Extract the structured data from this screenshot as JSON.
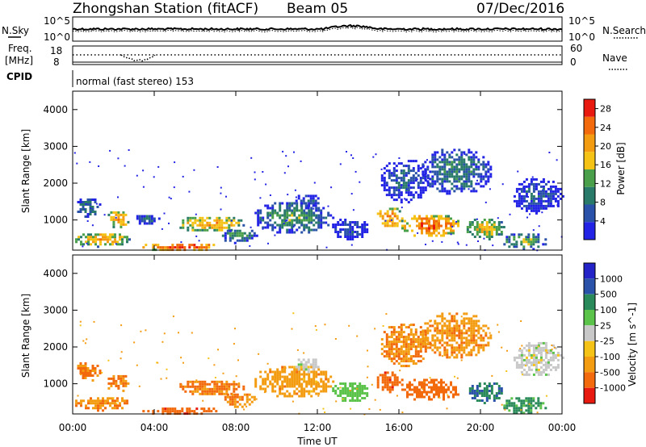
{
  "header": {
    "title": "Zhongshan Station (fitACF)",
    "beam": "Beam 05",
    "date": "07/Dec/2016"
  },
  "chart_data": [
    {
      "type": "line",
      "panel": "noise",
      "left_label": "N.Sky",
      "right_label": "N.Search",
      "left_ticks": [
        "10^5",
        "10^0"
      ],
      "right_ticks": [
        "10^5",
        "10^0"
      ]
    },
    {
      "type": "line",
      "panel": "frequency",
      "left_label_1": "Freq.",
      "left_label_2": "[MHz]",
      "right_label": "Nave",
      "left_ticks": [
        "18",
        "8"
      ],
      "right_ticks": [
        "60",
        "0"
      ]
    },
    {
      "type": "heatmap",
      "panel": "cpid",
      "left_label": "CPID",
      "mode": "normal (fast stereo) 153"
    },
    {
      "type": "heatmap",
      "panel": "power",
      "ylabel": "Slant Range [km]",
      "y_ticks": [
        "1000",
        "2000",
        "3000",
        "4000"
      ],
      "ylim": [
        180,
        4500
      ],
      "colorbar_label": "Power [dB]",
      "colorbar_ticks": [
        "4",
        "8",
        "12",
        "16",
        "20",
        "24",
        "28"
      ],
      "colorbar_range": [
        0,
        30
      ],
      "colors": [
        "#2323e6",
        "#2a52a8",
        "#2a7a6a",
        "#4aa04a",
        "#f5c216",
        "#f39c12",
        "#f26a0b",
        "#e81a0f"
      ],
      "blobs": [
        {
          "t0": 0.0,
          "t1": 2.8,
          "r0": 300,
          "r1": 700,
          "v": 20
        },
        {
          "t0": 0.1,
          "t1": 1.4,
          "r0": 1100,
          "r1": 1650,
          "v": 10
        },
        {
          "t0": 1.6,
          "t1": 2.8,
          "r0": 800,
          "r1": 1300,
          "v": 20
        },
        {
          "t0": 3.0,
          "t1": 4.2,
          "r0": 900,
          "r1": 1200,
          "v": 8
        },
        {
          "t0": 3.3,
          "t1": 7.2,
          "r0": 190,
          "r1": 420,
          "v": 27
        },
        {
          "t0": 5.0,
          "t1": 8.4,
          "r0": 700,
          "r1": 1150,
          "v": 20
        },
        {
          "t0": 7.2,
          "t1": 9.0,
          "r0": 400,
          "r1": 800,
          "v": 12
        },
        {
          "t0": 8.8,
          "t1": 12.8,
          "r0": 650,
          "r1": 1550,
          "v": 12
        },
        {
          "t0": 10.8,
          "t1": 12.1,
          "r0": 1350,
          "r1": 1750,
          "v": 8
        },
        {
          "t0": 12.6,
          "t1": 14.5,
          "r0": 500,
          "r1": 1100,
          "v": 6
        },
        {
          "t0": 14.8,
          "t1": 16.2,
          "r0": 800,
          "r1": 1400,
          "v": 22
        },
        {
          "t0": 15.0,
          "t1": 17.5,
          "r0": 1500,
          "r1": 2700,
          "v": 7
        },
        {
          "t0": 16.0,
          "t1": 19.0,
          "r0": 550,
          "r1": 1200,
          "v": 24
        },
        {
          "t0": 17.0,
          "t1": 20.5,
          "r0": 1700,
          "r1": 3000,
          "v": 10
        },
        {
          "t0": 19.2,
          "t1": 21.2,
          "r0": 500,
          "r1": 1100,
          "v": 18
        },
        {
          "t0": 21.0,
          "t1": 23.2,
          "r0": 200,
          "r1": 700,
          "v": 14
        },
        {
          "t0": 21.5,
          "t1": 24.0,
          "r0": 1200,
          "r1": 2200,
          "v": 7
        }
      ]
    },
    {
      "type": "heatmap",
      "panel": "velocity",
      "xlabel": "Time UT",
      "x_ticks": [
        "00:00",
        "04:00",
        "08:00",
        "12:00",
        "16:00",
        "20:00",
        "00:00"
      ],
      "xlim": [
        0,
        24
      ],
      "ylabel": "Slant Range [km]",
      "y_ticks": [
        "1000",
        "2000",
        "3000",
        "4000"
      ],
      "ylim": [
        180,
        4500
      ],
      "colorbar_label": "Velocity [m s^-1]",
      "colorbar_ticks": [
        "1000",
        "500",
        "100",
        "25",
        "-25",
        "-100",
        "-500",
        "-1000"
      ],
      "colorbar_range": [
        -1250,
        1250
      ],
      "colors": [
        "#e81a0f",
        "#f26a0b",
        "#f39c12",
        "#f5c216",
        "#c8c8c8",
        "#5bc24a",
        "#2a8a5a",
        "#2a52a8",
        "#2323c8"
      ],
      "blobs": [
        {
          "t0": 0.0,
          "t1": 2.8,
          "r0": 300,
          "r1": 700,
          "v": -90
        },
        {
          "t0": 0.1,
          "t1": 1.4,
          "r0": 1100,
          "r1": 1650,
          "v": -120
        },
        {
          "t0": 1.6,
          "t1": 2.8,
          "r0": 800,
          "r1": 1300,
          "v": -110
        },
        {
          "t0": 3.3,
          "t1": 7.2,
          "r0": 190,
          "r1": 420,
          "v": -380
        },
        {
          "t0": 5.0,
          "t1": 8.4,
          "r0": 700,
          "r1": 1150,
          "v": -120
        },
        {
          "t0": 7.2,
          "t1": 9.0,
          "r0": 400,
          "r1": 800,
          "v": -90
        },
        {
          "t0": 8.8,
          "t1": 12.8,
          "r0": 650,
          "r1": 1550,
          "v": -70
        },
        {
          "t0": 10.8,
          "t1": 12.1,
          "r0": 1350,
          "r1": 1750,
          "v": 0
        },
        {
          "t0": 12.6,
          "t1": 14.5,
          "r0": 500,
          "r1": 1100,
          "v": 60
        },
        {
          "t0": 14.8,
          "t1": 16.2,
          "r0": 800,
          "r1": 1400,
          "v": -350
        },
        {
          "t0": 15.0,
          "t1": 17.5,
          "r0": 1500,
          "r1": 2700,
          "v": -90
        },
        {
          "t0": 16.0,
          "t1": 19.0,
          "r0": 550,
          "r1": 1200,
          "v": -300
        },
        {
          "t0": 17.0,
          "t1": 20.5,
          "r0": 1700,
          "r1": 3000,
          "v": -80
        },
        {
          "t0": 19.2,
          "t1": 21.2,
          "r0": 500,
          "r1": 1100,
          "v": 500
        },
        {
          "t0": 21.0,
          "t1": 23.2,
          "r0": 200,
          "r1": 700,
          "v": 150
        },
        {
          "t0": 21.5,
          "t1": 24.0,
          "r0": 1200,
          "r1": 2200,
          "v": 0
        }
      ]
    }
  ]
}
